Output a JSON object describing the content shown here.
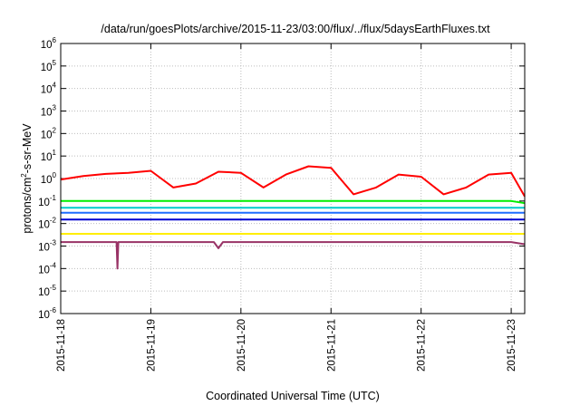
{
  "chart_data": {
    "type": "line",
    "title": "/data/run/goesPlots/archive/2015-11-23/03:00/flux/../flux/5daysEarthFluxes.txt",
    "xlabel": "Coordinated Universal Time (UTC)",
    "ylabel_parts": {
      "pre": "protons/cm",
      "sup": "2",
      "post": "-s-sr-MeV"
    },
    "yscale": "log",
    "ylim_exp": [
      -6,
      6
    ],
    "y_tick_base": "10",
    "y_tick_exponents": [
      "-6",
      "-5",
      "-4",
      "-3",
      "-2",
      "-1",
      "0",
      "1",
      "2",
      "3",
      "4",
      "5",
      "6"
    ],
    "xlim_days": [
      0,
      5.15
    ],
    "x_ticks": [
      {
        "label": "2015-11-18",
        "day": 0
      },
      {
        "label": "2015-11-19",
        "day": 1
      },
      {
        "label": "2015-11-20",
        "day": 2
      },
      {
        "label": "2015-11-21",
        "day": 3
      },
      {
        "label": "2015-11-22",
        "day": 4
      },
      {
        "label": "2015-11-23",
        "day": 5
      }
    ],
    "grid": true,
    "legend": "none",
    "series": [
      {
        "color": "#ff0000",
        "x_days": [
          0,
          0.25,
          0.5,
          0.75,
          1.0,
          1.25,
          1.5,
          1.75,
          2.0,
          2.25,
          2.5,
          2.75,
          3.0,
          3.25,
          3.5,
          3.75,
          4.0,
          4.25,
          4.5,
          4.75,
          5.0,
          5.15
        ],
        "values": [
          0.9,
          1.3,
          1.6,
          1.8,
          2.2,
          0.4,
          0.6,
          2.0,
          1.8,
          0.4,
          1.5,
          3.5,
          3.0,
          0.2,
          0.4,
          1.5,
          1.2,
          0.2,
          0.4,
          1.5,
          1.8,
          0.16
        ]
      },
      {
        "color": "#00ee00",
        "x_days": [
          0,
          1,
          2,
          3,
          4,
          5,
          5.15
        ],
        "values": [
          0.1,
          0.1,
          0.1,
          0.1,
          0.1,
          0.1,
          0.08
        ]
      },
      {
        "color": "#00cccc",
        "x_days": [
          0,
          1,
          2,
          3,
          4,
          5,
          5.15
        ],
        "values": [
          0.05,
          0.05,
          0.05,
          0.05,
          0.05,
          0.05,
          0.05
        ]
      },
      {
        "color": "#1e6bff",
        "x_days": [
          0,
          1,
          2,
          3,
          4,
          5,
          5.15
        ],
        "values": [
          0.03,
          0.03,
          0.03,
          0.03,
          0.03,
          0.03,
          0.03
        ]
      },
      {
        "color": "#0000d0",
        "x_days": [
          0,
          1,
          2,
          3,
          4,
          5,
          5.15
        ],
        "values": [
          0.015,
          0.015,
          0.015,
          0.015,
          0.015,
          0.015,
          0.015
        ]
      },
      {
        "color": "#ffee00",
        "x_days": [
          0,
          1,
          2,
          3,
          4,
          5,
          5.15
        ],
        "values": [
          0.0035,
          0.0035,
          0.0035,
          0.0035,
          0.0035,
          0.0035,
          0.0035
        ]
      },
      {
        "color": "#993366",
        "x_days": [
          0,
          0.62,
          0.63,
          0.64,
          1,
          1.5,
          1.7,
          1.75,
          1.8,
          2,
          3,
          4,
          5,
          5.15
        ],
        "values": [
          0.0015,
          0.0015,
          0.0001,
          0.0015,
          0.0015,
          0.0015,
          0.0015,
          0.0008,
          0.0015,
          0.0015,
          0.0015,
          0.0015,
          0.0015,
          0.0012
        ]
      }
    ]
  }
}
